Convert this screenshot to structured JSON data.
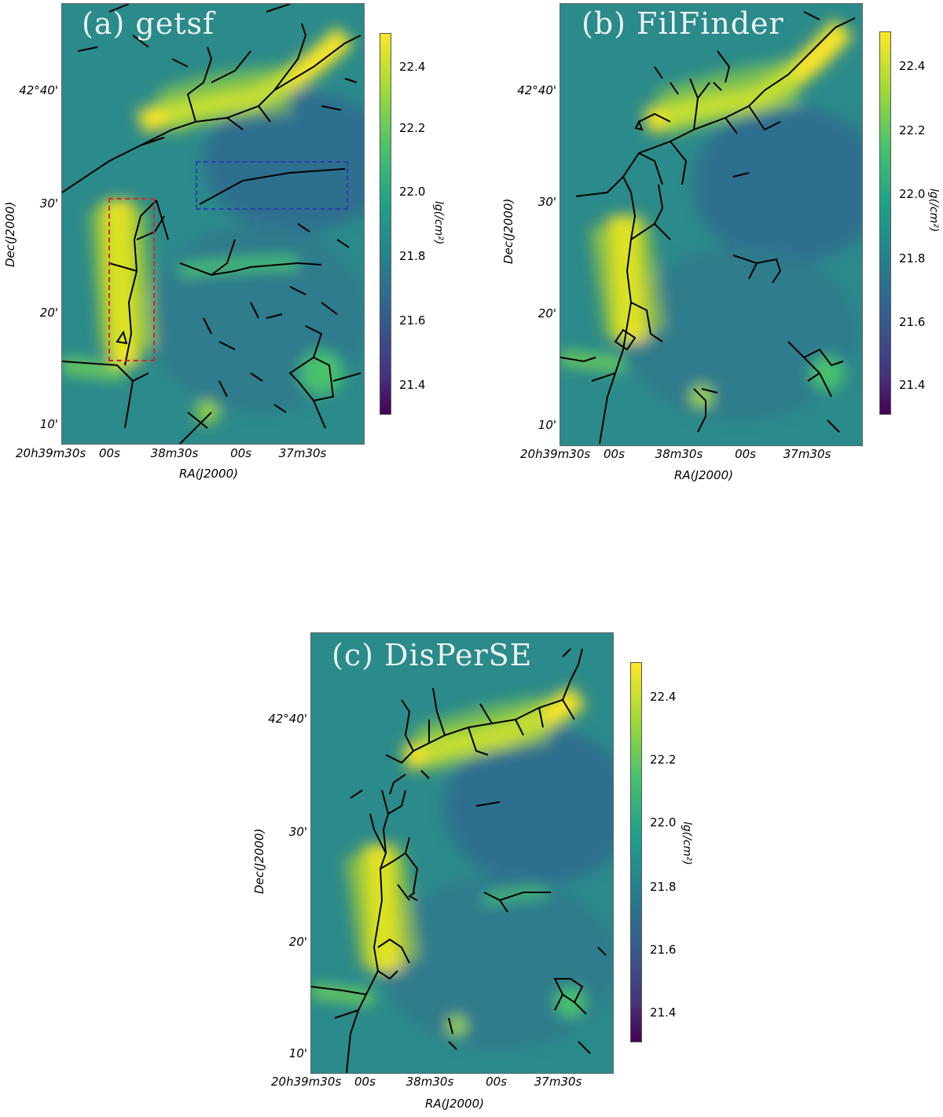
{
  "panels": [
    {
      "label": "(a) getsf"
    },
    {
      "label": "(b) FilFinder"
    },
    {
      "label": "(c) DisPerSE"
    }
  ],
  "axes": {
    "xlabel": "RA(J2000)",
    "ylabel": "Dec(J2000)",
    "yticks": [
      "42°40'",
      "30'",
      "20'",
      "10'"
    ],
    "xticks": [
      "20h39m30s",
      "00s",
      "38m30s",
      "00s",
      "37m30s"
    ]
  },
  "colorbar": {
    "title": "lg(/cm²)",
    "ticks": [
      "22.4",
      "22.2",
      "22.0",
      "21.8",
      "21.6",
      "21.4"
    ],
    "colormap": [
      "#440154",
      "#46327e",
      "#365c8d",
      "#277f8e",
      "#1fa187",
      "#4ac16d",
      "#a0da39",
      "#fde725"
    ]
  },
  "boxes": {
    "red_color": "#cc2a2a",
    "blue_color": "#2b3fae"
  },
  "chart_data": [
    {
      "type": "heatmap",
      "title": "(a) getsf",
      "xlabel": "RA(J2000)",
      "ylabel": "Dec(J2000)",
      "colorbar_range": [
        21.3,
        22.5
      ],
      "colorbar_label": "lg(/cm²)"
    },
    {
      "type": "heatmap",
      "title": "(b) FilFinder",
      "xlabel": "RA(J2000)",
      "ylabel": "Dec(J2000)",
      "colorbar_range": [
        21.3,
        22.5
      ],
      "colorbar_label": "lg(/cm²)"
    },
    {
      "type": "heatmap",
      "title": "(c) DisPerSE",
      "xlabel": "RA(J2000)",
      "ylabel": "Dec(J2000)",
      "colorbar_range": [
        21.3,
        22.5
      ],
      "colorbar_label": "lg(/cm²)"
    }
  ]
}
